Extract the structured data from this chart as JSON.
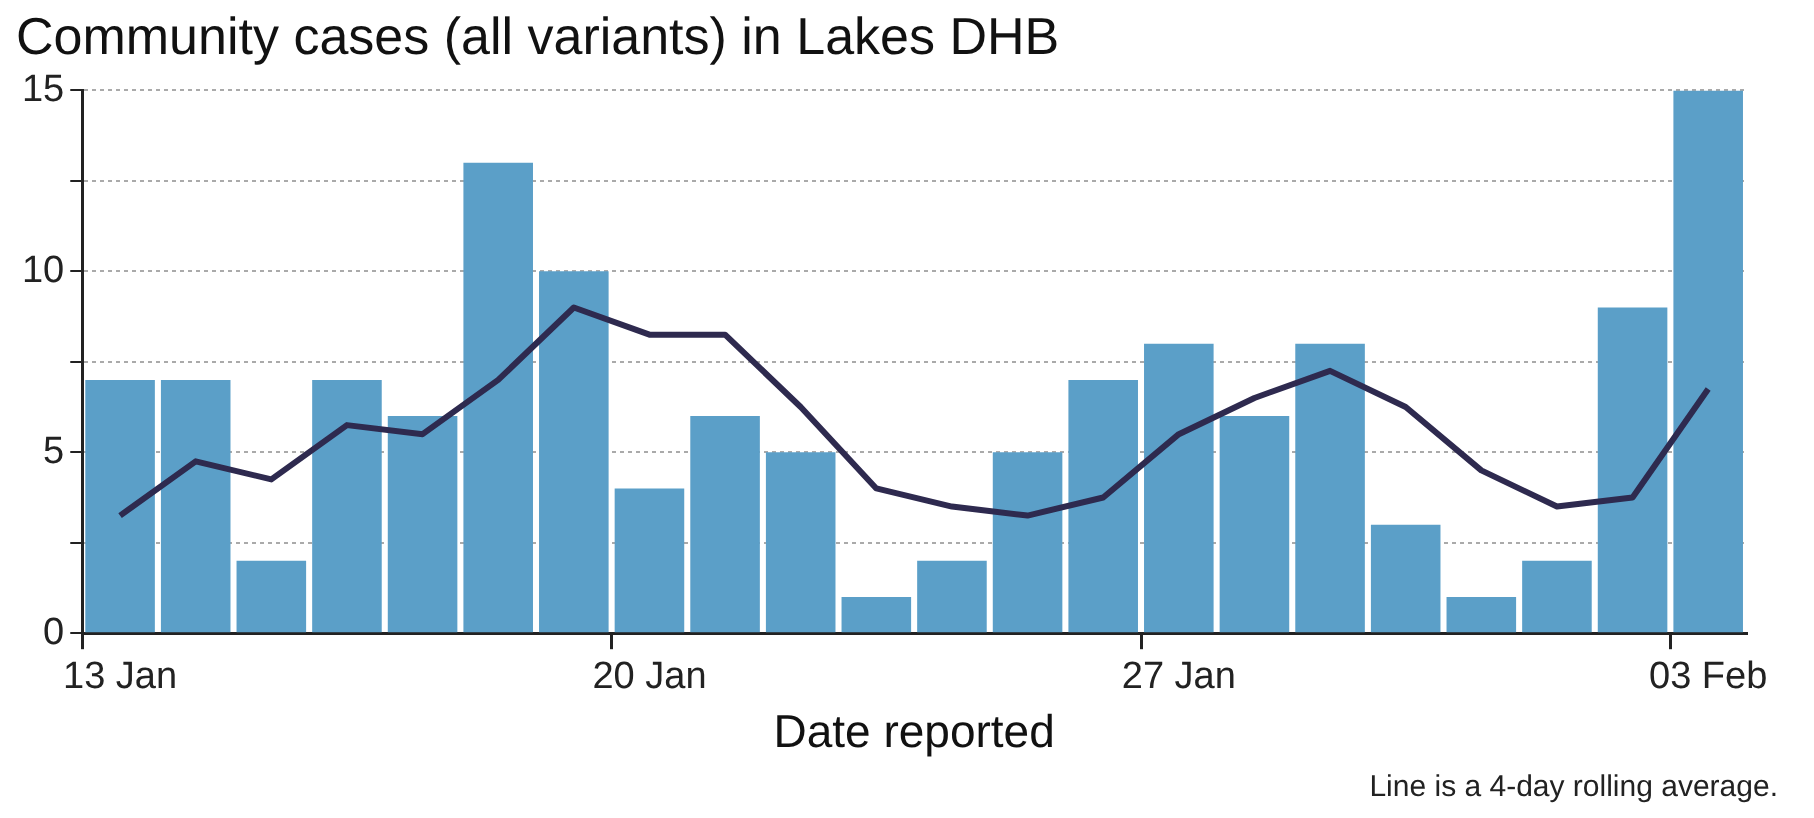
{
  "chart_data": {
    "type": "bar",
    "title": "Community cases (all variants) in Lakes DHB",
    "xlabel": "Date reported",
    "categories": [
      "13 Jan",
      null,
      null,
      null,
      null,
      null,
      null,
      "20 Jan",
      null,
      null,
      null,
      null,
      null,
      null,
      "27 Jan",
      null,
      null,
      null,
      null,
      null,
      null,
      "03 Feb"
    ],
    "series": [
      {
        "color": "#5b9fc8",
        "values": [
          7,
          7,
          2,
          7,
          6,
          13,
          10,
          4,
          6,
          5,
          1,
          2,
          5,
          7,
          8,
          6,
          8,
          3,
          1,
          2,
          9,
          15
        ]
      },
      {
        "type": "line",
        "color": "#2e2a4f",
        "values": [
          3.25,
          4.75,
          4.25,
          5.75,
          5.5,
          7,
          9,
          8.25,
          8.25,
          6.25,
          4,
          3.5,
          3.25,
          3.75,
          5.5,
          6.5,
          7.25,
          6.25,
          4.5,
          3.5,
          3.75,
          6.75
        ]
      }
    ],
    "ylim": [
      0,
      15
    ],
    "yticks": [
      0,
      {
        "value": 2.5,
        "label": null
      },
      5,
      {
        "value": 7.5,
        "label": null
      },
      10,
      {
        "value": 12.5,
        "label": null
      },
      15
    ],
    "grid": "y",
    "legend": false,
    "marker": "none",
    "line_style": "solid",
    "annotations": [
      "Line is a 4-day rolling average."
    ]
  }
}
